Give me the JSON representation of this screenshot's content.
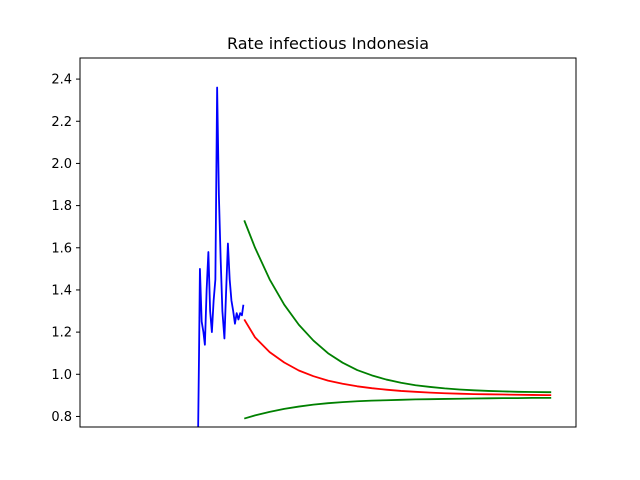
{
  "chart_data": {
    "type": "line",
    "title": "Rate infectious Indonesia",
    "xlabel": "",
    "ylabel": "",
    "ylim": [
      0.75,
      2.5
    ],
    "xlim": [
      0,
      170
    ],
    "x_ticks_shown": false,
    "grid": false,
    "y_ticks": [
      "0.8",
      "1.0",
      "1.2",
      "1.4",
      "1.6",
      "1.8",
      "2.0",
      "2.2",
      "2.4"
    ],
    "series": [
      {
        "color": "#0000ff",
        "points": [
          [
            40.5,
            0.75
          ],
          [
            40.8,
            1.1
          ],
          [
            41.1,
            1.5
          ],
          [
            41.7,
            1.25
          ],
          [
            42.3,
            1.2
          ],
          [
            42.8,
            1.14
          ],
          [
            43.4,
            1.4
          ],
          [
            44.0,
            1.58
          ],
          [
            44.6,
            1.3
          ],
          [
            45.2,
            1.2
          ],
          [
            45.8,
            1.35
          ],
          [
            46.4,
            1.45
          ],
          [
            47.0,
            2.36
          ],
          [
            47.6,
            1.85
          ],
          [
            48.2,
            1.55
          ],
          [
            48.8,
            1.3
          ],
          [
            49.5,
            1.17
          ],
          [
            50.1,
            1.4
          ],
          [
            50.7,
            1.62
          ],
          [
            51.3,
            1.45
          ],
          [
            51.9,
            1.35
          ],
          [
            52.5,
            1.3
          ],
          [
            53.1,
            1.24
          ],
          [
            53.7,
            1.29
          ],
          [
            54.3,
            1.26
          ],
          [
            54.9,
            1.29
          ],
          [
            55.5,
            1.28
          ],
          [
            56.0,
            1.33
          ]
        ]
      },
      {
        "color": "#ff0000",
        "points": [
          [
            56.3,
            1.26
          ],
          [
            60,
            1.175
          ],
          [
            65,
            1.105
          ],
          [
            70,
            1.056
          ],
          [
            75,
            1.018
          ],
          [
            80,
            0.991
          ],
          [
            85,
            0.97
          ],
          [
            90,
            0.955
          ],
          [
            95,
            0.943
          ],
          [
            100,
            0.934
          ],
          [
            105,
            0.927
          ],
          [
            110,
            0.921
          ],
          [
            115,
            0.917
          ],
          [
            120,
            0.913
          ],
          [
            125,
            0.91
          ],
          [
            130,
            0.908
          ],
          [
            135,
            0.906
          ],
          [
            140,
            0.905
          ],
          [
            145,
            0.904
          ],
          [
            150,
            0.903
          ],
          [
            155,
            0.902
          ],
          [
            160,
            0.901
          ],
          [
            161.5,
            0.901
          ]
        ]
      },
      {
        "color": "#008000",
        "points": [
          [
            56.3,
            1.73
          ],
          [
            60,
            1.6
          ],
          [
            65,
            1.45
          ],
          [
            70,
            1.33
          ],
          [
            75,
            1.235
          ],
          [
            80,
            1.16
          ],
          [
            85,
            1.1
          ],
          [
            90,
            1.055
          ],
          [
            95,
            1.02
          ],
          [
            100,
            0.995
          ],
          [
            105,
            0.975
          ],
          [
            110,
            0.96
          ],
          [
            115,
            0.948
          ],
          [
            120,
            0.94
          ],
          [
            125,
            0.933
          ],
          [
            130,
            0.928
          ],
          [
            135,
            0.924
          ],
          [
            140,
            0.921
          ],
          [
            145,
            0.919
          ],
          [
            150,
            0.917
          ],
          [
            155,
            0.916
          ],
          [
            160,
            0.915
          ],
          [
            161.5,
            0.915
          ]
        ]
      },
      {
        "color": "#008000",
        "points": [
          [
            56.3,
            0.79
          ],
          [
            60,
            0.805
          ],
          [
            65,
            0.822
          ],
          [
            70,
            0.836
          ],
          [
            75,
            0.847
          ],
          [
            80,
            0.856
          ],
          [
            85,
            0.863
          ],
          [
            90,
            0.868
          ],
          [
            95,
            0.872
          ],
          [
            100,
            0.875
          ],
          [
            105,
            0.877
          ],
          [
            110,
            0.879
          ],
          [
            115,
            0.881
          ],
          [
            120,
            0.882
          ],
          [
            125,
            0.883
          ],
          [
            130,
            0.884
          ],
          [
            135,
            0.885
          ],
          [
            140,
            0.886
          ],
          [
            145,
            0.887
          ],
          [
            150,
            0.887
          ],
          [
            155,
            0.888
          ],
          [
            160,
            0.888
          ],
          [
            161.5,
            0.888
          ]
        ]
      }
    ]
  }
}
